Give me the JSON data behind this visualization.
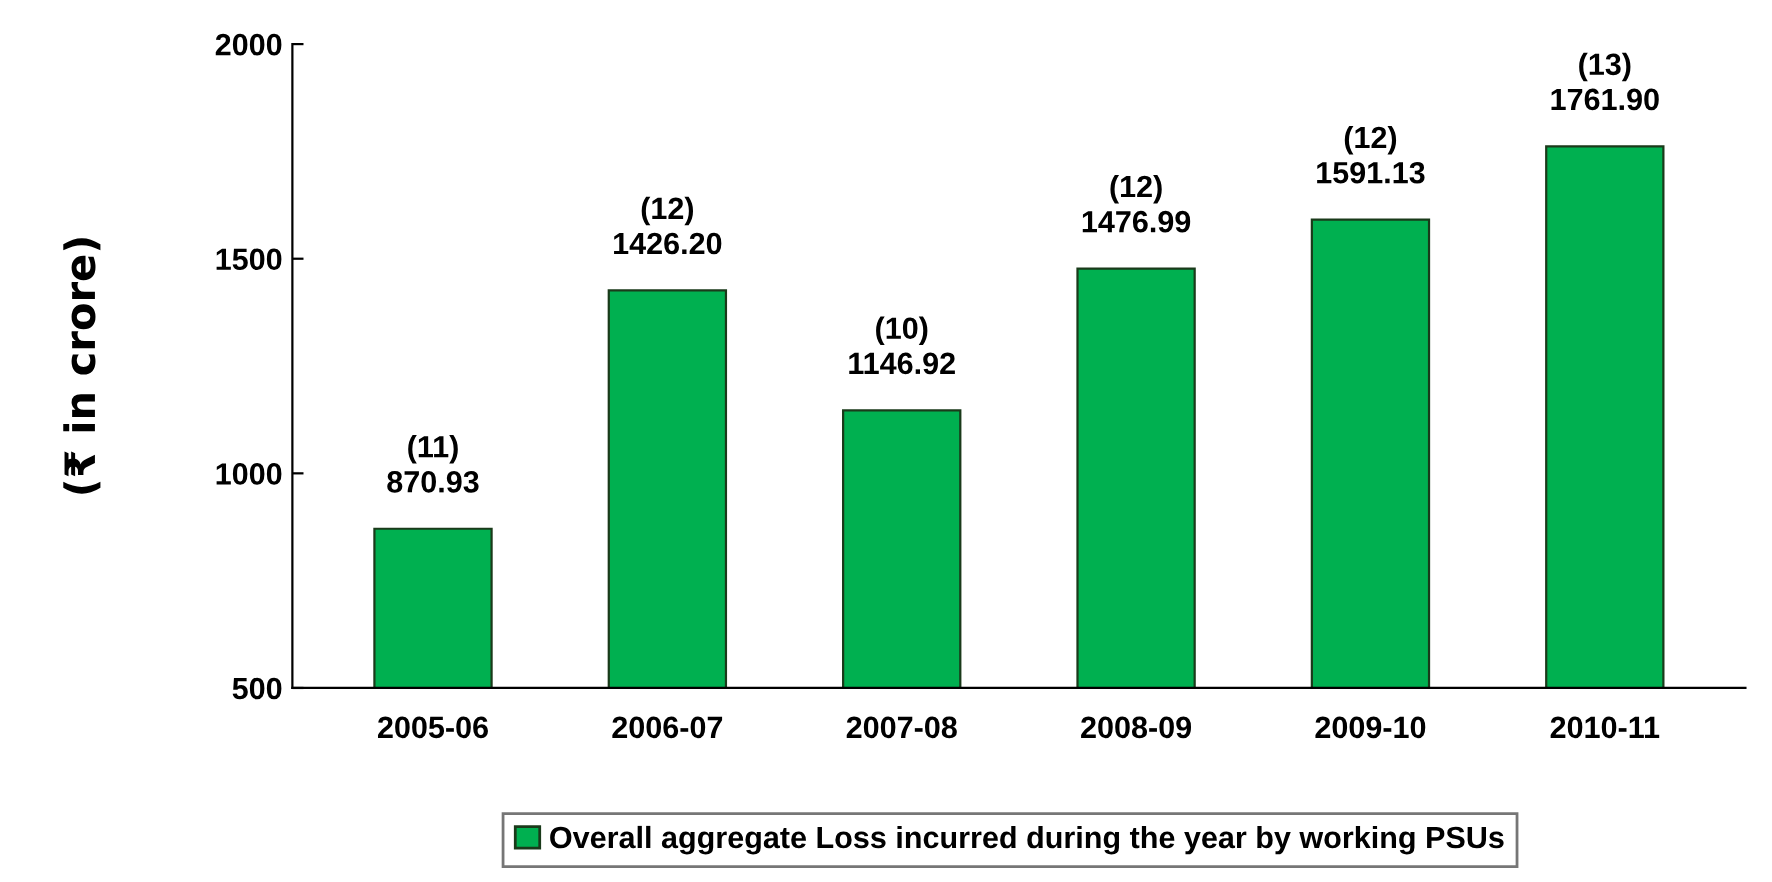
{
  "chart_data": {
    "type": "bar",
    "ylabel": "(₹ in crore)",
    "categories": [
      "2005-06",
      "2006-07",
      "2007-08",
      "2008-09",
      "2009-10",
      "2010-11"
    ],
    "series": [
      {
        "name": "Overall aggregate Loss incurred during the year by working PSUs",
        "color": "#00b050",
        "values": [
          870.93,
          1426.2,
          1146.92,
          1476.99,
          1591.13,
          1761.9
        ],
        "value_labels": [
          "(11)\n870.93",
          "(12)\n1426.20",
          "(10)\n1146.92",
          "(12)\n1476.99",
          "(12)\n1591.13",
          "(13)\n1761.90"
        ]
      }
    ],
    "ylim": [
      500,
      2000
    ],
    "yticks": [
      500,
      1000,
      1500,
      2000
    ],
    "grid": false,
    "legend": "bottom"
  }
}
